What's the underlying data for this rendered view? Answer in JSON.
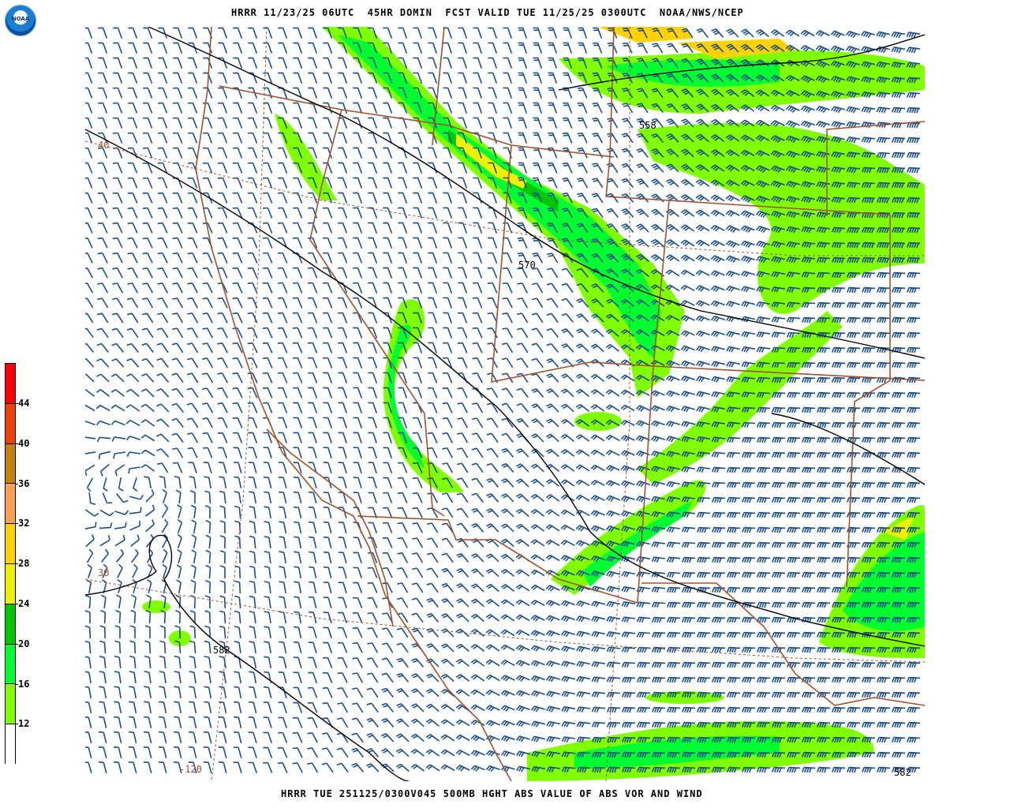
{
  "header": {
    "title": "HRRR 11/23/25 06UTC  45HR DOMIN  FCST VALID TUE 11/25/25 0300UTC  NOAA/NWS/NCEP",
    "logo": "NOAA"
  },
  "footer": {
    "title": "HRRR TUE 251125/0300V045 500MB HGHT ABS VALUE OF ABS VOR AND WIND"
  },
  "colorbar": {
    "labels": [
      "44",
      "40",
      "36",
      "32",
      "28",
      "24",
      "20",
      "16",
      "12"
    ],
    "colors": [
      "#ff0000",
      "#f04000",
      "#c88000",
      "#ffa050",
      "#ffd200",
      "#f0f000",
      "#00c800",
      "#00ff30",
      "#80ff00",
      "#ffffff"
    ]
  },
  "map": {
    "contour_labels": [
      "558",
      "570",
      "582",
      "582"
    ],
    "lat_labels": [
      "40",
      "30"
    ],
    "lon_labels": [
      "-120"
    ],
    "colors": {
      "barb": "#1a4f8a",
      "border": "#a0522d",
      "contour": "#000000",
      "vort_low": "#80ff00",
      "vort_mid": "#00ff30"
    }
  }
}
